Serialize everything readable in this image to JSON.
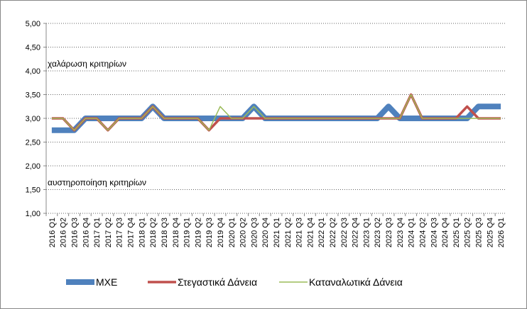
{
  "chart_data": {
    "type": "line",
    "annotations": [
      {
        "text": "χαλάρωση κριτηρίων",
        "y": 4.0
      },
      {
        "text": "αυστηροποίηση κριτηρίων",
        "y": 1.5
      }
    ],
    "categories": [
      "2016 Q1",
      "2016 Q2",
      "2016 Q3",
      "2016 Q4",
      "2017 Q1",
      "2017 Q2",
      "2017 Q3",
      "2017 Q4",
      "2018 Q1",
      "2018 Q2",
      "2018 Q3",
      "2018 Q4",
      "2019 Q1",
      "2019 Q2",
      "2019 Q3",
      "2019 Q4",
      "2020 Q1",
      "2020 Q2",
      "2020 Q3",
      "2020 Q4",
      "2021 Q1",
      "2021 Q2",
      "2021 Q3",
      "2021 Q4",
      "2022 Q1",
      "2022 Q2",
      "2022 Q3",
      "2022 Q4",
      "2023 Q1",
      "2023 Q2",
      "2023 Q3",
      "2023 Q4",
      "2024 Q1",
      "2024 Q2",
      "2024 Q3",
      "2024 Q4",
      "2025 Q1",
      "2025 Q2",
      "2025 Q3",
      "2025 Q4",
      "2026 Q1"
    ],
    "series": [
      {
        "name": "ΜΧΕ",
        "color": "#4f81bd",
        "width": 8,
        "values": [
          2.75,
          2.75,
          2.75,
          3,
          3,
          3,
          3,
          3,
          3,
          3.25,
          3,
          3,
          3,
          3,
          3,
          3,
          3,
          3,
          3.25,
          3,
          3,
          3,
          3,
          3,
          3,
          3,
          3,
          3,
          3,
          3,
          3.25,
          3,
          3,
          3,
          3,
          3,
          3,
          3,
          3.25,
          3.25,
          3.25
        ]
      },
      {
        "name": "Στεγαστικά Δάνεια",
        "color": "#c0504d",
        "width": 3.5,
        "values": [
          3,
          3,
          2.75,
          3,
          3,
          2.75,
          3,
          3,
          3,
          3.25,
          3,
          3,
          3,
          3,
          2.75,
          3,
          3,
          3,
          3,
          3,
          3,
          3,
          3,
          3,
          3,
          3,
          3,
          3,
          3,
          3,
          3,
          3,
          3.5,
          3,
          3,
          3,
          3,
          3.25,
          3,
          3,
          3
        ]
      },
      {
        "name": "Καταναλωτικά Δάνεια",
        "color": "#9bbb59",
        "width": 1.5,
        "values": [
          3,
          3,
          2.75,
          3,
          3,
          2.75,
          3,
          3,
          3,
          3.25,
          3,
          3,
          3,
          3,
          2.75,
          3.25,
          3,
          3,
          3.25,
          3,
          3,
          3,
          3,
          3,
          3,
          3,
          3,
          3,
          3,
          3,
          3,
          3,
          3.5,
          3,
          3,
          3,
          3,
          3,
          3,
          3,
          3
        ]
      }
    ],
    "ylim": [
      1,
      5
    ],
    "yticks": [
      {
        "value": 1,
        "label": "1,00"
      },
      {
        "value": 1.5,
        "label": "1,50"
      },
      {
        "value": 2,
        "label": "2,00"
      },
      {
        "value": 2.5,
        "label": "2,50"
      },
      {
        "value": 3,
        "label": "3,00"
      },
      {
        "value": 3.5,
        "label": "3,50"
      },
      {
        "value": 4,
        "label": "4,00"
      },
      {
        "value": 4.5,
        "label": "4,50"
      },
      {
        "value": 5,
        "label": "5,00"
      }
    ],
    "grid": true
  }
}
